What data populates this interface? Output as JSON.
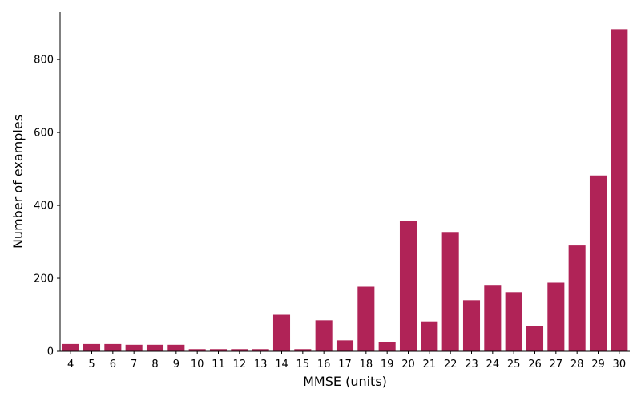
{
  "chart_data": {
    "type": "bar",
    "title": "",
    "xlabel": "MMSE (units)",
    "ylabel": "Number of examples",
    "categories": [
      "4",
      "5",
      "6",
      "7",
      "8",
      "9",
      "10",
      "11",
      "12",
      "13",
      "14",
      "15",
      "16",
      "17",
      "18",
      "19",
      "20",
      "21",
      "22",
      "23",
      "24",
      "25",
      "26",
      "27",
      "28",
      "29",
      "30"
    ],
    "values": [
      20,
      20,
      20,
      18,
      18,
      18,
      6,
      6,
      6,
      6,
      100,
      6,
      85,
      30,
      177,
      26,
      357,
      82,
      327,
      140,
      182,
      162,
      70,
      188,
      290,
      482,
      883
    ],
    "ylim": [
      0,
      930
    ],
    "yticks": [
      0,
      200,
      400,
      600,
      800
    ],
    "bar_color": "#b02357",
    "grid": false,
    "legend": "none"
  }
}
